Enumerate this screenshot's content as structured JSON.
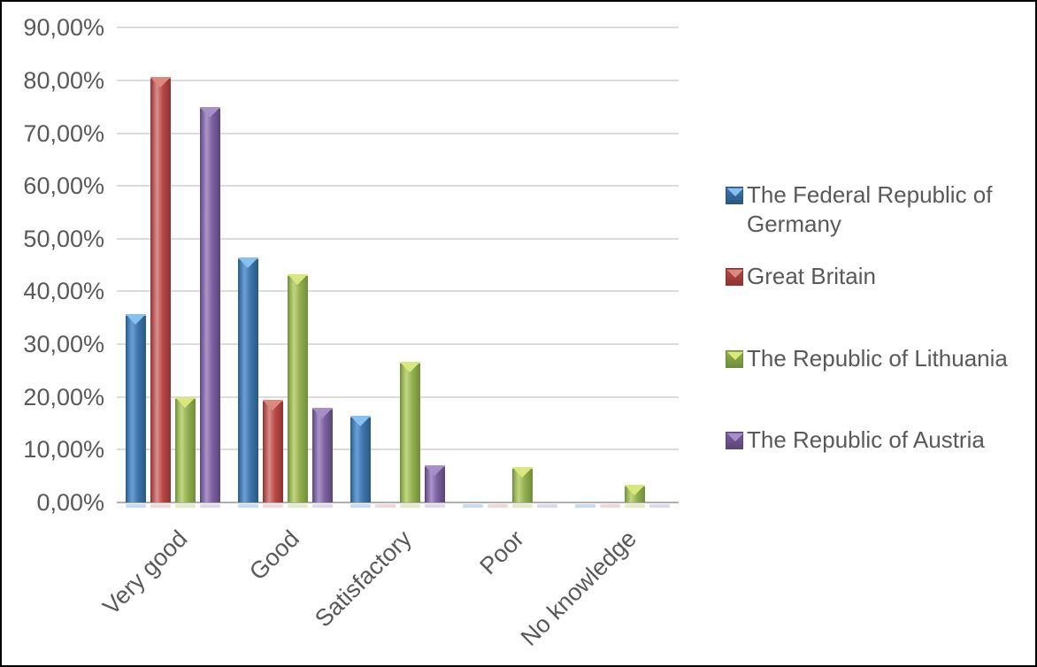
{
  "figure": {
    "background": "#ffffff",
    "border_color": "#000000",
    "axis_text_color": "#595959",
    "gridline_color": "#DCDCDC",
    "baseline_color": "#B0B0B0"
  },
  "chart_data": {
    "type": "bar",
    "title": "",
    "xlabel": "",
    "ylabel": "",
    "grid": true,
    "legend_position": "right",
    "categories": [
      "Very good",
      "Good",
      "Satisfactory",
      "Poor",
      "No knowledge"
    ],
    "y_axis": {
      "min": 0,
      "max": 90,
      "step": 10,
      "unit": "%",
      "decimal_style": "comma",
      "tick_labels": [
        "90,00%",
        "80,00%",
        "70,00%",
        "60,00%",
        "50,00%",
        "40,00%",
        "30,00%",
        "20,00%",
        "10,00%",
        "0,00%"
      ]
    },
    "series": [
      {
        "name": "The Federal Republic of Germany",
        "key": "germany",
        "values": [
          35.7,
          46.4,
          16.4,
          0,
          0
        ],
        "color": "#3E76AE",
        "colors": {
          "edge": "#2B5881",
          "hi": "#4B86BE",
          "light": "#6C9FD4",
          "mid": "#3E76AE",
          "cap": "#86C1EF",
          "base": "#C8DCF0"
        }
      },
      {
        "name": "Great Britain",
        "key": "great-britain",
        "values": [
          80.6,
          19.4,
          0,
          0,
          0
        ],
        "color": "#BB4846",
        "colors": {
          "edge": "#8C3431",
          "hi": "#C16360",
          "light": "#D4908E",
          "mid": "#BB4846",
          "cap": "#DC8A80",
          "base": "#EFD8D7"
        }
      },
      {
        "name": "The Republic of Lithuania",
        "key": "lithuania",
        "values": [
          20.0,
          43.3,
          26.7,
          6.7,
          3.3
        ],
        "color": "#94B04F",
        "colors": {
          "edge": "#6F8D3A",
          "hi": "#A3BD61",
          "light": "#C1D684",
          "mid": "#94B04F",
          "cap": "#D9E77F",
          "base": "#E3ECC9"
        }
      },
      {
        "name": "The  Republic of Austria",
        "key": "austria",
        "values": [
          75.0,
          17.9,
          7.1,
          0,
          0
        ],
        "color": "#7C61A1",
        "colors": {
          "edge": "#5A4574",
          "hi": "#8A71AD",
          "light": "#AC95C9",
          "mid": "#7C61A1",
          "cap": "#A78FC9",
          "base": "#DFD8EA"
        }
      }
    ]
  },
  "legend": {
    "items": [
      "The Federal Republic of Germany",
      "Great Britain",
      "The Republic of Lithuania",
      "The  Republic of Austria"
    ]
  }
}
